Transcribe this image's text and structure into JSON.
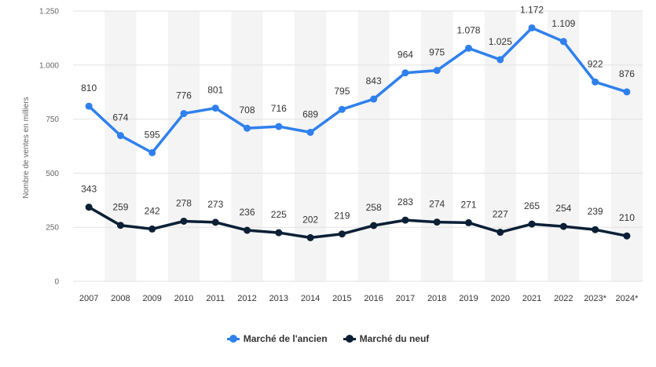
{
  "chart_data": {
    "type": "line",
    "title": "",
    "xlabel": "",
    "ylabel": "Nombre de ventes en milliers",
    "ylim": [
      0,
      1250
    ],
    "yticks": [
      0,
      250,
      500,
      750,
      1000,
      1250
    ],
    "ytick_labels": [
      "0",
      "250",
      "500",
      "750",
      "1.000",
      "1.250"
    ],
    "grid": true,
    "legend_position": "bottom-center",
    "categories": [
      "2007",
      "2008",
      "2009",
      "2010",
      "2011",
      "2012",
      "2013",
      "2014",
      "2015",
      "2016",
      "2017",
      "2018",
      "2019",
      "2020",
      "2021",
      "2022",
      "2023*",
      "2024*"
    ],
    "series": [
      {
        "name": "Marché de l'ancien",
        "color": "#2f80ed",
        "values": [
          810,
          674,
          595,
          776,
          801,
          708,
          716,
          689,
          795,
          843,
          964,
          975,
          1078,
          1025,
          1172,
          1109,
          922,
          876
        ],
        "labels": [
          "810",
          "674",
          "595",
          "776",
          "801",
          "708",
          "716",
          "689",
          "795",
          "843",
          "964",
          "975",
          "1.078",
          "1.025",
          "1.172",
          "1.109",
          "922",
          "876"
        ]
      },
      {
        "name": "Marché du neuf",
        "color": "#0b1f35",
        "values": [
          343,
          259,
          242,
          278,
          273,
          236,
          225,
          202,
          219,
          258,
          283,
          274,
          271,
          227,
          265,
          254,
          239,
          210
        ],
        "labels": [
          "343",
          "259",
          "242",
          "278",
          "273",
          "236",
          "225",
          "202",
          "219",
          "258",
          "283",
          "274",
          "271",
          "227",
          "265",
          "254",
          "239",
          "210"
        ]
      }
    ]
  }
}
